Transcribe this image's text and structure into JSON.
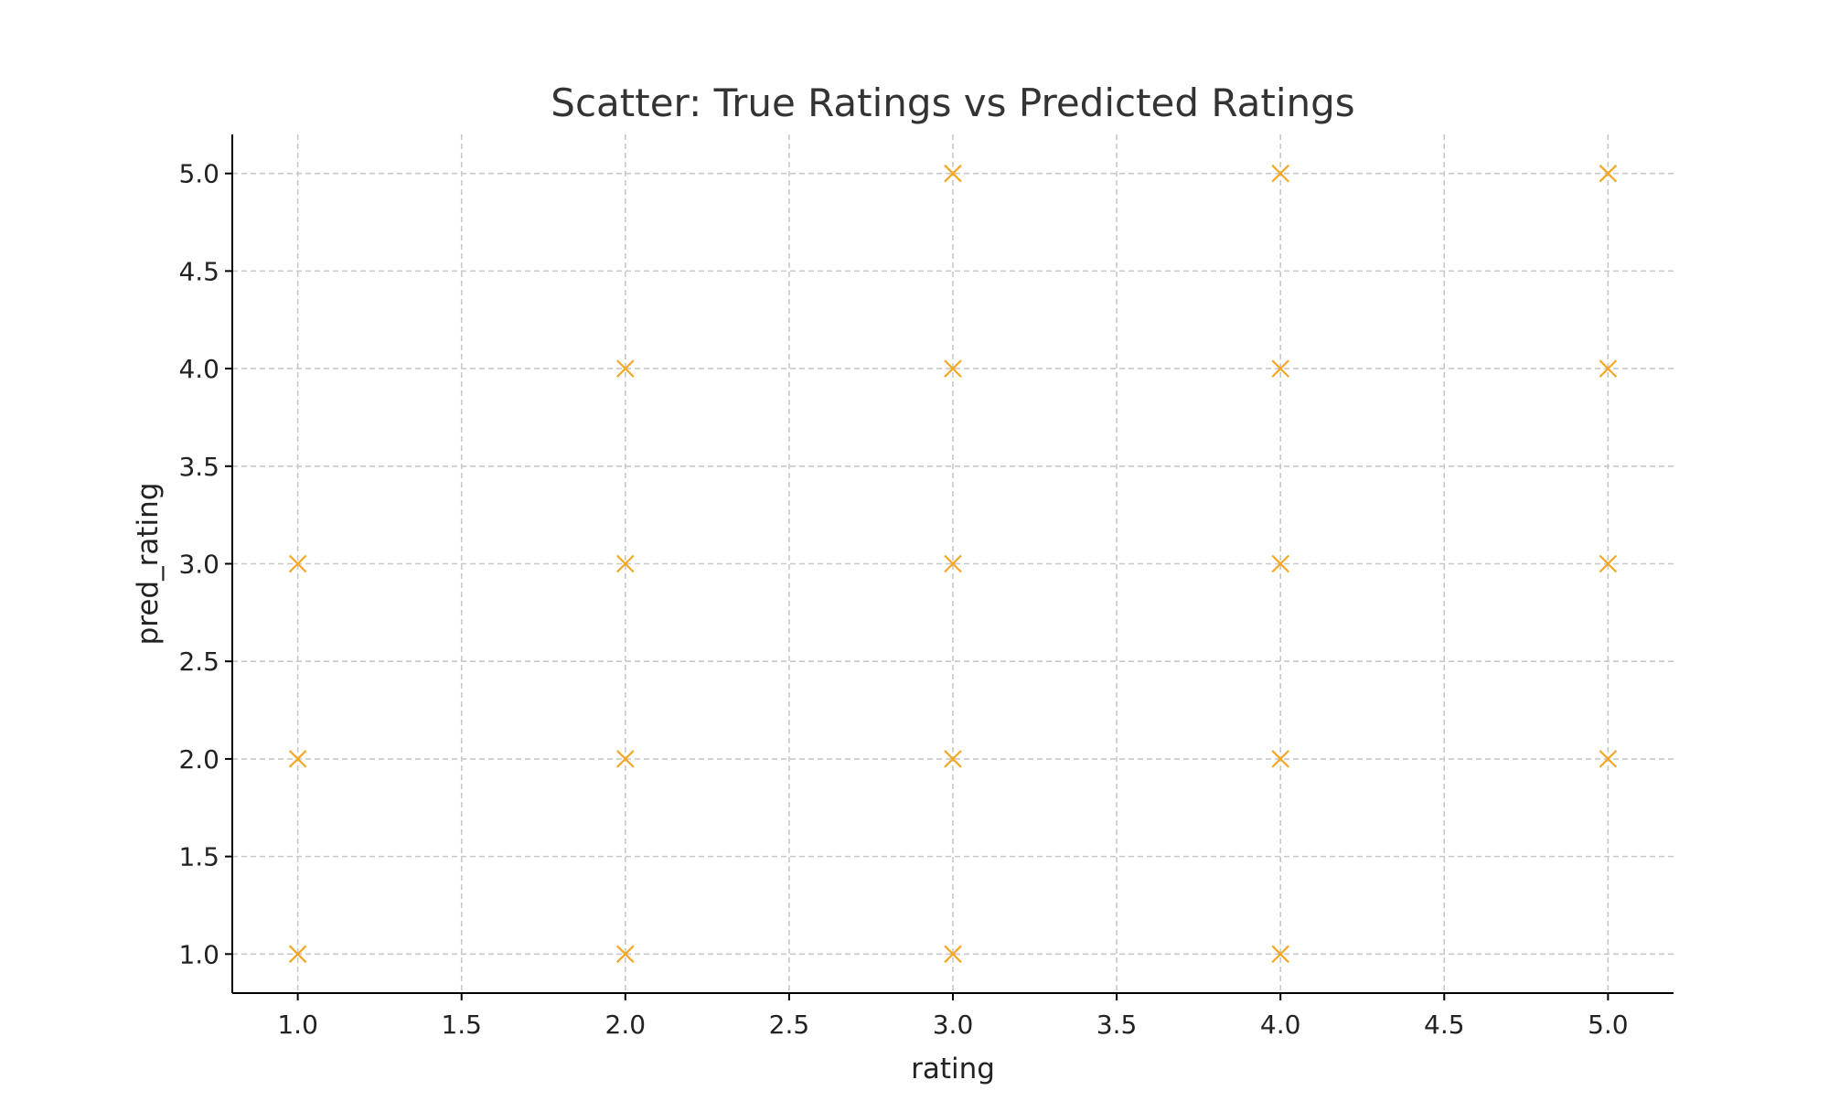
{
  "chart_data": {
    "type": "scatter",
    "title": "Scatter: True Ratings vs Predicted Ratings",
    "xlabel": "rating",
    "ylabel": "pred_rating",
    "xlim": [
      0.8,
      5.2
    ],
    "ylim": [
      0.8,
      5.2
    ],
    "x_ticks": [
      1.0,
      1.5,
      2.0,
      2.5,
      3.0,
      3.5,
      4.0,
      4.5,
      5.0
    ],
    "y_ticks": [
      1.0,
      1.5,
      2.0,
      2.5,
      3.0,
      3.5,
      4.0,
      4.5,
      5.0
    ],
    "x_tick_labels": [
      "1.0",
      "1.5",
      "2.0",
      "2.5",
      "3.0",
      "3.5",
      "4.0",
      "4.5",
      "5.0"
    ],
    "y_tick_labels": [
      "1.0",
      "1.5",
      "2.0",
      "2.5",
      "3.0",
      "3.5",
      "4.0",
      "4.5",
      "5.0"
    ],
    "grid": true,
    "marker": "x",
    "marker_color": "#f5a623",
    "points": [
      {
        "x": 1,
        "y": 1
      },
      {
        "x": 1,
        "y": 2
      },
      {
        "x": 1,
        "y": 3
      },
      {
        "x": 2,
        "y": 1
      },
      {
        "x": 2,
        "y": 2
      },
      {
        "x": 2,
        "y": 3
      },
      {
        "x": 2,
        "y": 4
      },
      {
        "x": 3,
        "y": 1
      },
      {
        "x": 3,
        "y": 2
      },
      {
        "x": 3,
        "y": 3
      },
      {
        "x": 3,
        "y": 4
      },
      {
        "x": 3,
        "y": 5
      },
      {
        "x": 4,
        "y": 1
      },
      {
        "x": 4,
        "y": 2
      },
      {
        "x": 4,
        "y": 3
      },
      {
        "x": 4,
        "y": 4
      },
      {
        "x": 4,
        "y": 5
      },
      {
        "x": 5,
        "y": 2
      },
      {
        "x": 5,
        "y": 3
      },
      {
        "x": 5,
        "y": 4
      },
      {
        "x": 5,
        "y": 5
      }
    ]
  }
}
